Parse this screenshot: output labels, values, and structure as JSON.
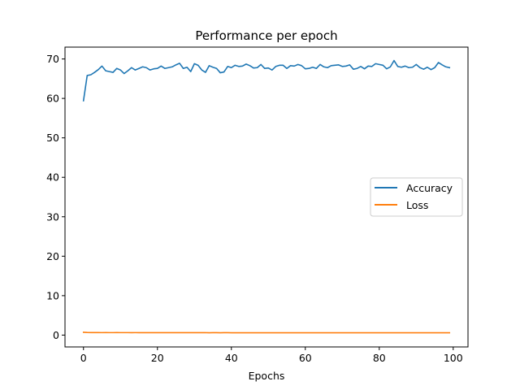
{
  "chart_data": {
    "type": "line",
    "title": "Performance per epoch",
    "xlabel": "Epochs",
    "ylabel": "",
    "xlim": [
      -5,
      104
    ],
    "ylim": [
      -3,
      73
    ],
    "xticks": [
      0,
      20,
      40,
      60,
      80,
      100
    ],
    "yticks": [
      0,
      10,
      20,
      30,
      40,
      50,
      60,
      70
    ],
    "grid": false,
    "legend_position": "center-right",
    "series": [
      {
        "name": "Accuracy",
        "color": "#1f77b4",
        "x": [
          0,
          1,
          2,
          3,
          4,
          5,
          6,
          7,
          8,
          9,
          10,
          11,
          12,
          13,
          14,
          15,
          16,
          17,
          18,
          19,
          20,
          21,
          22,
          23,
          24,
          25,
          26,
          27,
          28,
          29,
          30,
          31,
          32,
          33,
          34,
          35,
          36,
          37,
          38,
          39,
          40,
          41,
          42,
          43,
          44,
          45,
          46,
          47,
          48,
          49,
          50,
          51,
          52,
          53,
          54,
          55,
          56,
          57,
          58,
          59,
          60,
          61,
          62,
          63,
          64,
          65,
          66,
          67,
          68,
          69,
          70,
          71,
          72,
          73,
          74,
          75,
          76,
          77,
          78,
          79,
          80,
          81,
          82,
          83,
          84,
          85,
          86,
          87,
          88,
          89,
          90,
          91,
          92,
          93,
          94,
          95,
          96,
          97,
          98,
          99
        ],
        "values": [
          59.4,
          65.8,
          66.0,
          66.6,
          67.3,
          68.2,
          67.0,
          66.8,
          66.6,
          67.6,
          67.2,
          66.3,
          67.0,
          67.8,
          67.2,
          67.6,
          68.0,
          67.8,
          67.2,
          67.5,
          67.6,
          68.2,
          67.6,
          67.8,
          68.0,
          68.5,
          68.9,
          67.6,
          67.9,
          66.8,
          68.8,
          68.4,
          67.2,
          66.6,
          68.3,
          67.9,
          67.6,
          66.5,
          66.7,
          68.1,
          67.8,
          68.4,
          68.1,
          68.2,
          68.7,
          68.3,
          67.7,
          67.8,
          68.6,
          67.6,
          67.7,
          67.2,
          68.1,
          68.4,
          68.4,
          67.6,
          68.3,
          68.2,
          68.6,
          68.3,
          67.5,
          67.6,
          67.9,
          67.6,
          68.6,
          68.0,
          67.8,
          68.3,
          68.4,
          68.5,
          68.1,
          68.2,
          68.5,
          67.4,
          67.6,
          68.1,
          67.5,
          68.2,
          68.1,
          68.8,
          68.6,
          68.4,
          67.5,
          68.0,
          69.6,
          68.1,
          67.9,
          68.2,
          67.8,
          67.9,
          68.6,
          67.8,
          67.4,
          67.9,
          67.3,
          67.8,
          69.1,
          68.5,
          68.0,
          67.8
        ]
      },
      {
        "name": "Loss",
        "color": "#ff7f0e",
        "x": [
          0,
          1,
          2,
          3,
          4,
          5,
          6,
          7,
          8,
          9,
          10,
          11,
          12,
          13,
          14,
          15,
          16,
          17,
          18,
          19,
          20,
          21,
          22,
          23,
          24,
          25,
          26,
          27,
          28,
          29,
          30,
          31,
          32,
          33,
          34,
          35,
          36,
          37,
          38,
          39,
          40,
          41,
          42,
          43,
          44,
          45,
          46,
          47,
          48,
          49,
          50,
          51,
          52,
          53,
          54,
          55,
          56,
          57,
          58,
          59,
          60,
          61,
          62,
          63,
          64,
          65,
          66,
          67,
          68,
          69,
          70,
          71,
          72,
          73,
          74,
          75,
          76,
          77,
          78,
          79,
          80,
          81,
          82,
          83,
          84,
          85,
          86,
          87,
          88,
          89,
          90,
          91,
          92,
          93,
          94,
          95,
          96,
          97,
          98,
          99
        ],
        "values": [
          0.72,
          0.66,
          0.65,
          0.64,
          0.64,
          0.63,
          0.64,
          0.63,
          0.63,
          0.64,
          0.63,
          0.63,
          0.63,
          0.62,
          0.63,
          0.62,
          0.62,
          0.62,
          0.62,
          0.62,
          0.62,
          0.61,
          0.62,
          0.61,
          0.61,
          0.61,
          0.61,
          0.61,
          0.61,
          0.62,
          0.61,
          0.61,
          0.61,
          0.61,
          0.6,
          0.61,
          0.61,
          0.6,
          0.61,
          0.61,
          0.6,
          0.6,
          0.6,
          0.6,
          0.6,
          0.6,
          0.6,
          0.6,
          0.6,
          0.6,
          0.6,
          0.6,
          0.6,
          0.6,
          0.6,
          0.6,
          0.6,
          0.6,
          0.6,
          0.6,
          0.6,
          0.6,
          0.6,
          0.6,
          0.6,
          0.6,
          0.6,
          0.6,
          0.6,
          0.6,
          0.6,
          0.6,
          0.6,
          0.6,
          0.6,
          0.6,
          0.6,
          0.6,
          0.6,
          0.6,
          0.6,
          0.6,
          0.6,
          0.6,
          0.6,
          0.6,
          0.6,
          0.6,
          0.6,
          0.6,
          0.6,
          0.6,
          0.6,
          0.6,
          0.6,
          0.6,
          0.6,
          0.6,
          0.6,
          0.6
        ]
      }
    ]
  }
}
